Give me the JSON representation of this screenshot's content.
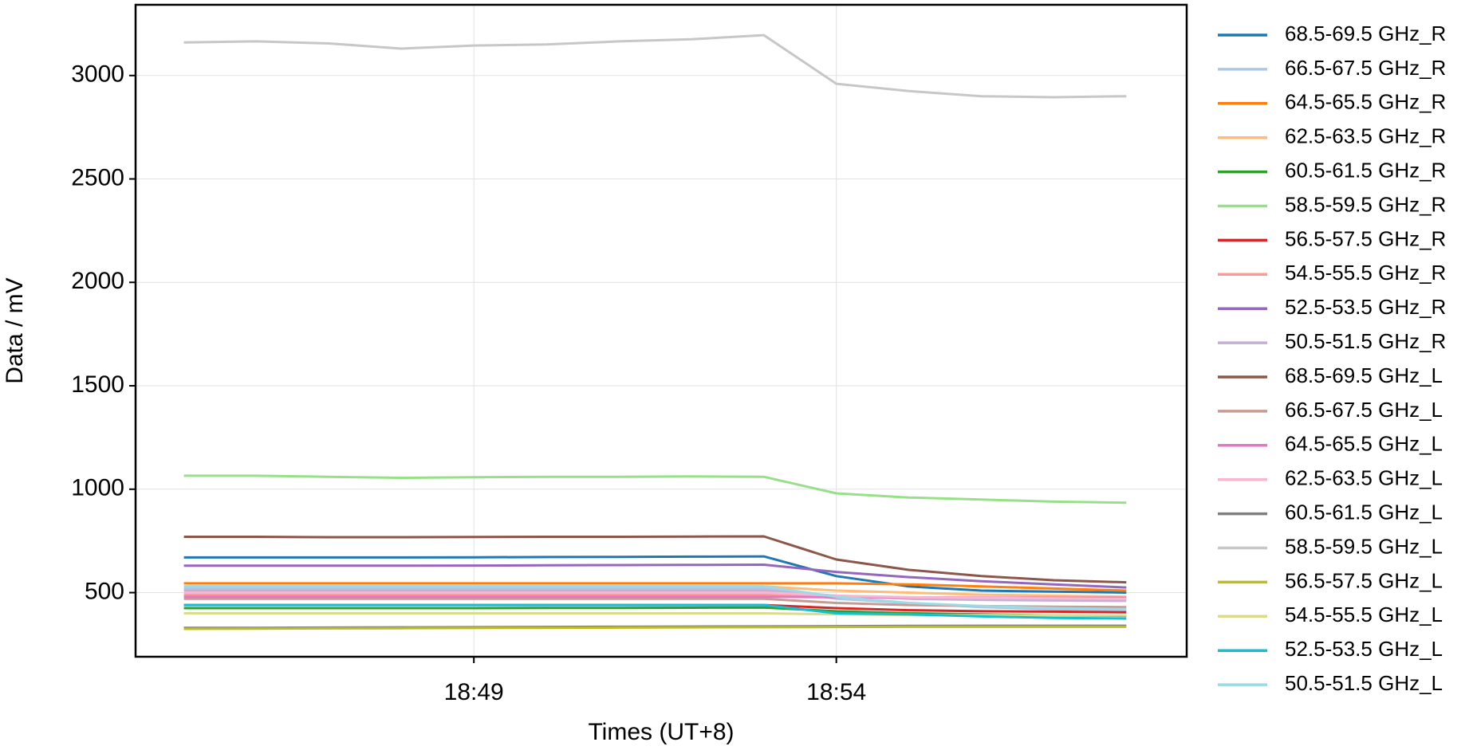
{
  "chart_data": {
    "type": "line",
    "x_label": "Times (UT+8)",
    "y_label": "Data / mV",
    "x": [
      "18:45:00",
      "18:46:00",
      "18:47:00",
      "18:48:00",
      "18:49:00",
      "18:50:00",
      "18:51:00",
      "18:52:00",
      "18:53:00",
      "18:54:00",
      "18:55:00",
      "18:56:00",
      "18:57:00",
      "18:58:00"
    ],
    "xlim": [
      "18:44:20",
      "18:58:50"
    ],
    "xticks": [
      {
        "value": "18:49:00",
        "label": "18:49"
      },
      {
        "value": "18:54:00",
        "label": "18:54"
      }
    ],
    "ylim": [
      190,
      3342
    ],
    "yticks": [
      500,
      1000,
      1500,
      2000,
      2500,
      3000
    ],
    "grid": true,
    "legend": "outside-right",
    "series": [
      {
        "name": "68.5-69.5 GHz_R",
        "color": "#1f77b4",
        "values": [
          670,
          670,
          670,
          670,
          671,
          672,
          673,
          674,
          675,
          580,
          530,
          510,
          505,
          500
        ]
      },
      {
        "name": "66.5-67.5 GHz_R",
        "color": "#aec7e8",
        "values": [
          520,
          520,
          520,
          520,
          520,
          520,
          521,
          521,
          520,
          470,
          450,
          430,
          420,
          415
        ]
      },
      {
        "name": "64.5-65.5 GHz_R",
        "color": "#ff7f0e",
        "values": [
          545,
          545,
          545,
          545,
          545,
          545,
          545,
          545,
          545,
          545,
          540,
          530,
          520,
          510
        ]
      },
      {
        "name": "62.5-63.5 GHz_R",
        "color": "#ffbb78",
        "values": [
          530,
          530,
          530,
          530,
          530,
          530,
          530,
          530,
          530,
          510,
          500,
          490,
          485,
          480
        ]
      },
      {
        "name": "60.5-61.5 GHz_R",
        "color": "#2ca02c",
        "values": [
          425,
          425,
          425,
          425,
          425,
          426,
          426,
          427,
          428,
          410,
          400,
          395,
          390,
          388
        ]
      },
      {
        "name": "58.5-59.5 GHz_R",
        "color": "#98df8a",
        "values": [
          1065,
          1065,
          1060,
          1055,
          1058,
          1060,
          1060,
          1062,
          1060,
          980,
          960,
          950,
          940,
          935
        ]
      },
      {
        "name": "56.5-57.5 GHz_R",
        "color": "#d62728",
        "values": [
          440,
          440,
          440,
          440,
          440,
          440,
          440,
          440,
          440,
          425,
          415,
          410,
          408,
          405
        ]
      },
      {
        "name": "54.5-55.5 GHz_R",
        "color": "#ff9896",
        "values": [
          490,
          490,
          490,
          490,
          490,
          490,
          490,
          490,
          490,
          480,
          475,
          472,
          470,
          470
        ]
      },
      {
        "name": "52.5-53.5 GHz_R",
        "color": "#9467bd",
        "values": [
          630,
          630,
          630,
          630,
          631,
          632,
          633,
          634,
          635,
          600,
          575,
          555,
          540,
          525
        ]
      },
      {
        "name": "50.5-51.5 GHz_R",
        "color": "#c5b0d5",
        "values": [
          510,
          510,
          510,
          510,
          510,
          510,
          510,
          510,
          510,
          485,
          470,
          465,
          462,
          460
        ]
      },
      {
        "name": "68.5-69.5 GHz_L",
        "color": "#8c564b",
        "values": [
          770,
          770,
          768,
          768,
          769,
          770,
          770,
          771,
          772,
          660,
          610,
          580,
          560,
          550
        ]
      },
      {
        "name": "66.5-67.5 GHz_L",
        "color": "#c49c94",
        "values": [
          470,
          470,
          470,
          470,
          470,
          470,
          470,
          470,
          470,
          450,
          440,
          435,
          432,
          430
        ]
      },
      {
        "name": "64.5-65.5 GHz_L",
        "color": "#e377c2",
        "values": [
          480,
          480,
          480,
          480,
          480,
          480,
          480,
          480,
          480,
          478,
          477,
          476,
          475,
          475
        ]
      },
      {
        "name": "62.5-63.5 GHz_L",
        "color": "#f7b6d2",
        "values": [
          500,
          500,
          500,
          500,
          500,
          500,
          500,
          500,
          500,
          485,
          478,
          474,
          472,
          470
        ]
      },
      {
        "name": "60.5-61.5 GHz_L",
        "color": "#7f7f7f",
        "values": [
          330,
          330,
          331,
          332,
          333,
          334,
          335,
          336,
          337,
          338,
          339,
          340,
          340,
          340
        ]
      },
      {
        "name": "58.5-59.5 GHz_L",
        "color": "#c7c7c7",
        "values": [
          3160,
          3165,
          3155,
          3130,
          3145,
          3150,
          3165,
          3175,
          3195,
          2960,
          2925,
          2900,
          2895,
          2900
        ]
      },
      {
        "name": "56.5-57.5 GHz_L",
        "color": "#bcbd22",
        "values": [
          325,
          326,
          327,
          328,
          329,
          330,
          331,
          332,
          333,
          334,
          335,
          335,
          335,
          335
        ]
      },
      {
        "name": "54.5-55.5 GHz_L",
        "color": "#dbdb8d",
        "values": [
          400,
          400,
          400,
          400,
          400,
          400,
          400,
          400,
          400,
          395,
          392,
          391,
          390,
          390
        ]
      },
      {
        "name": "52.5-53.5 GHz_L",
        "color": "#17becf",
        "values": [
          440,
          440,
          440,
          440,
          440,
          440,
          440,
          440,
          440,
          400,
          395,
          385,
          378,
          375
        ]
      },
      {
        "name": "50.5-51.5 GHz_L",
        "color": "#9edae5",
        "values": [
          530,
          530,
          530,
          530,
          530,
          530,
          530,
          530,
          530,
          480,
          450,
          435,
          425,
          420
        ]
      }
    ]
  }
}
